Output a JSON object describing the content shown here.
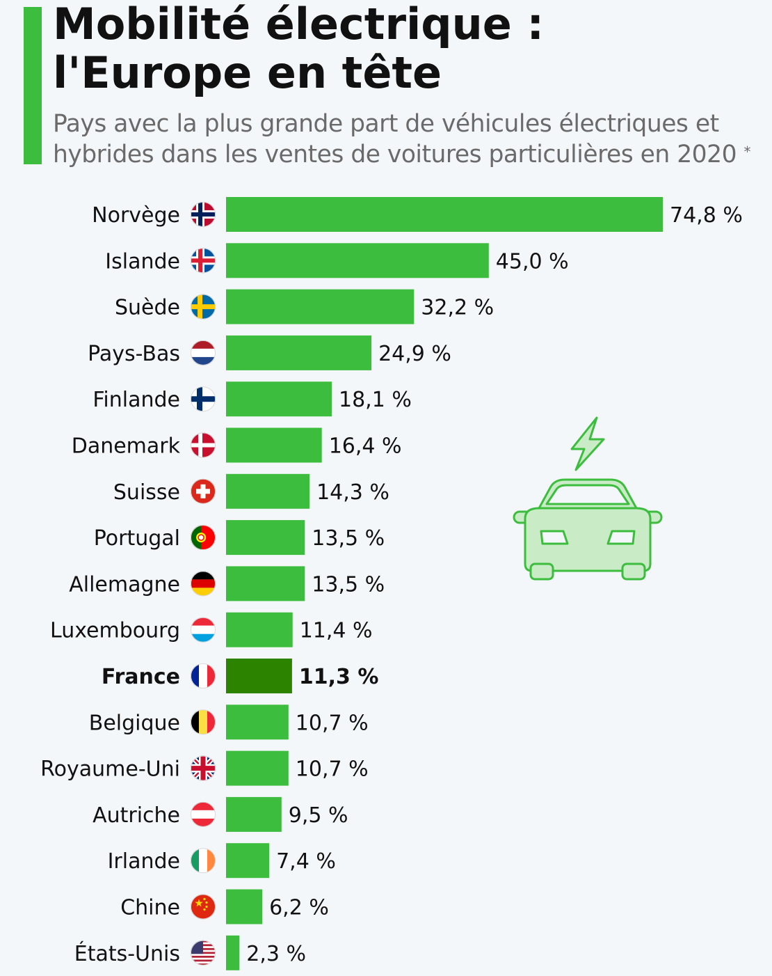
{
  "header": {
    "title": "Mobilité électrique :\nl'Europe en tête",
    "subtitle": "Pays avec la plus grande part de véhicules électriques et\nhybrides dans les ventes de voitures particulières en 2020",
    "asterisk": "*"
  },
  "colors": {
    "accent": "#3dbd3d",
    "bar": "#3dbd3d",
    "highlight_bar": "#2b8300",
    "illustration": "#c9ebc6"
  },
  "chart_data": {
    "type": "bar",
    "orientation": "horizontal",
    "unit": "%",
    "highlight": "France",
    "categories": [
      "Norvège",
      "Islande",
      "Suède",
      "Pays-Bas",
      "Finlande",
      "Danemark",
      "Suisse",
      "Portugal",
      "Allemagne",
      "Luxembourg",
      "France",
      "Belgique",
      "Royaume-Uni",
      "Autriche",
      "Irlande",
      "Chine",
      "États-Unis"
    ],
    "values": [
      74.8,
      45.0,
      32.2,
      24.9,
      18.1,
      16.4,
      14.3,
      13.5,
      13.5,
      11.4,
      11.3,
      10.7,
      10.7,
      9.5,
      7.4,
      6.2,
      2.3
    ],
    "value_labels": [
      "74,8 %",
      "45,0 %",
      "32,2 %",
      "24,9 %",
      "18,1 %",
      "16,4 %",
      "14,3 %",
      "13,5 %",
      "13,5 %",
      "11,4 %",
      "11,3 %",
      "10,7 %",
      "10,7 %",
      "9,5 %",
      "7,4 %",
      "6,2 %",
      "2,3 %"
    ],
    "flag_icons": [
      "norway-flag-icon",
      "iceland-flag-icon",
      "sweden-flag-icon",
      "netherlands-flag-icon",
      "finland-flag-icon",
      "denmark-flag-icon",
      "switzerland-flag-icon",
      "portugal-flag-icon",
      "germany-flag-icon",
      "luxembourg-flag-icon",
      "france-flag-icon",
      "belgium-flag-icon",
      "uk-flag-icon",
      "austria-flag-icon",
      "ireland-flag-icon",
      "china-flag-icon",
      "usa-flag-icon"
    ],
    "xlim": [
      0,
      74.8
    ],
    "grid": false,
    "legend": "none"
  },
  "illustration": {
    "icon": "electric-car-icon"
  }
}
